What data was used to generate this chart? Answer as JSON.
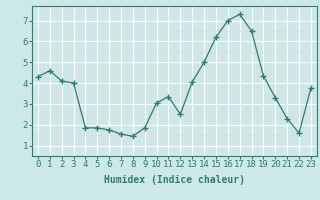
{
  "x": [
    0,
    1,
    2,
    3,
    4,
    5,
    6,
    7,
    8,
    9,
    10,
    11,
    12,
    13,
    14,
    15,
    16,
    17,
    18,
    19,
    20,
    21,
    22,
    23
  ],
  "y": [
    4.3,
    4.6,
    4.1,
    4.0,
    1.85,
    1.85,
    1.75,
    1.55,
    1.45,
    1.85,
    3.05,
    3.35,
    2.5,
    4.05,
    5.0,
    6.2,
    7.0,
    7.3,
    6.5,
    4.35,
    3.3,
    2.3,
    1.6,
    3.75
  ],
  "line_color": "#2e7d6e",
  "marker": "+",
  "marker_size": 4,
  "bg_color": "#cce8e8",
  "grid_color": "#ffffff",
  "grid_minor_color": "#e8d8d8",
  "xlabel": "Humidex (Indice chaleur)",
  "xlim": [
    -0.5,
    23.5
  ],
  "ylim": [
    0.85,
    7.7
  ],
  "yticks": [
    1,
    2,
    3,
    4,
    5,
    6,
    7
  ],
  "xticks": [
    0,
    1,
    2,
    3,
    4,
    5,
    6,
    7,
    8,
    9,
    10,
    11,
    12,
    13,
    14,
    15,
    16,
    17,
    18,
    19,
    20,
    21,
    22,
    23
  ],
  "tick_color": "#2e7d6e",
  "label_color": "#2e7d6e",
  "font_size_label": 7,
  "font_size_tick": 6.5
}
